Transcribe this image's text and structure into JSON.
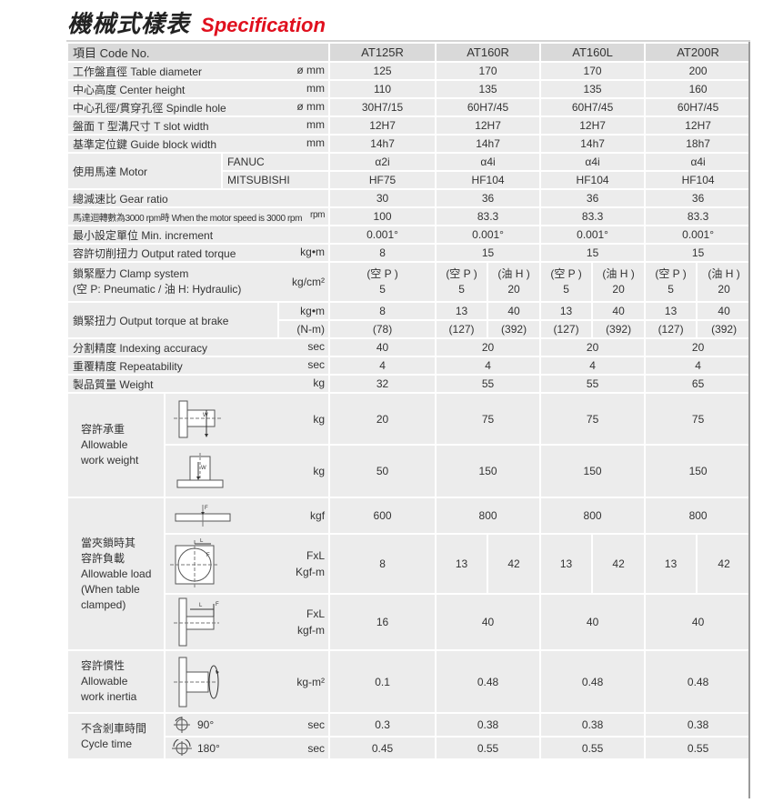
{
  "title": {
    "zh": "機械式樣表",
    "en": "Specification"
  },
  "header": {
    "label": "項目 Code No.",
    "models": [
      "AT125R",
      "AT160R",
      "AT160L",
      "AT200R"
    ]
  },
  "rows": {
    "table_diameter": {
      "label": "工作盤直徑 Table diameter",
      "unit": "ø mm",
      "values": [
        "125",
        "170",
        "170",
        "200"
      ]
    },
    "center_height": {
      "label": "中心高度 Center height",
      "unit": "mm",
      "values": [
        "110",
        "135",
        "135",
        "160"
      ]
    },
    "spindle_hole": {
      "label": "中心孔徑/貫穿孔徑 Spindle hole",
      "unit": "ø mm",
      "values": [
        "30H7/15",
        "60H7/45",
        "60H7/45",
        "60H7/45"
      ]
    },
    "t_slot": {
      "label": "盤面 T 型溝尺寸 T slot width",
      "unit": "mm",
      "values": [
        "12H7",
        "12H7",
        "12H7",
        "12H7"
      ]
    },
    "guide_block": {
      "label": "基準定位鍵 Guide block width",
      "unit": "mm",
      "values": [
        "14h7",
        "14h7",
        "14h7",
        "18h7"
      ]
    },
    "motor": {
      "label": "使用馬達 Motor",
      "fanuc": {
        "label": "FANUC",
        "values": [
          "α2i",
          "α4i",
          "α4i",
          "α4i"
        ]
      },
      "mitsubishi": {
        "label": "MITSUBISHI",
        "values": [
          "HF75",
          "HF104",
          "HF104",
          "HF104"
        ]
      }
    },
    "gear_ratio": {
      "label": "總減速比 Gear ratio",
      "values": [
        "30",
        "36",
        "36",
        "36"
      ]
    },
    "motor_speed": {
      "label": "馬達迴轉數為3000 rpm時 When the motor speed is 3000 rpm",
      "unit": "rpm",
      "values": [
        "100",
        "83.3",
        "83.3",
        "83.3"
      ]
    },
    "min_increment": {
      "label": "最小設定單位 Min. increment",
      "values": [
        "0.001°",
        "0.001°",
        "0.001°",
        "0.001°"
      ]
    },
    "output_torque": {
      "label": "容許切削扭力 Output rated torque",
      "unit": "kg•m",
      "values": [
        "8",
        "15",
        "15",
        "15"
      ]
    },
    "clamp_system": {
      "label1": "鎖緊壓力 Clamp system",
      "label2": "(空 P: Pneumatic / 油 H: Hydraulic)",
      "unit": "kg/cm²",
      "p_label": "(空 P )",
      "h_label": "(油 H )",
      "at125r": "5",
      "p_values": [
        "5",
        "5",
        "5"
      ],
      "h_values": [
        "20",
        "20",
        "20"
      ]
    },
    "brake_torque": {
      "label": "鎖緊扭力 Output torque at brake",
      "unit1": "kg•m",
      "unit2": "(N-m)",
      "at125r": [
        "8",
        "(78)"
      ],
      "p_values": [
        "13",
        "13",
        "13"
      ],
      "h_values": [
        "40",
        "40",
        "40"
      ],
      "p_nm": [
        "(127)",
        "(127)",
        "(127)"
      ],
      "h_nm": [
        "(392)",
        "(392)",
        "(392)"
      ]
    },
    "indexing": {
      "label": "分割精度 Indexing accuracy",
      "unit": "sec",
      "values": [
        "40",
        "20",
        "20",
        "20"
      ]
    },
    "repeatability": {
      "label": "重覆精度 Repeatability",
      "unit": "sec",
      "values": [
        "4",
        "4",
        "4",
        "4"
      ]
    },
    "weight": {
      "label": "製品質量 Weight",
      "unit": "kg",
      "values": [
        "32",
        "55",
        "55",
        "65"
      ]
    },
    "work_weight": {
      "label": [
        "容許承重",
        "Allowable",
        "work weight"
      ],
      "fig_letter": "W",
      "vertical": {
        "unit": "kg",
        "values": [
          "20",
          "75",
          "75",
          "75"
        ]
      },
      "horizontal": {
        "unit": "kg",
        "values": [
          "50",
          "150",
          "150",
          "150"
        ]
      }
    },
    "allowable_load": {
      "label": [
        "當夾鎖時其",
        "容許負載",
        "Allowable load",
        "(When table",
        "clamped)"
      ],
      "fig_f": "F",
      "fig_l": "L",
      "axial": {
        "unit": "kgf",
        "values": [
          "600",
          "800",
          "800",
          "800"
        ]
      },
      "radial": {
        "unit1": "FxL",
        "unit2": "Kgf-m",
        "at125r": "8",
        "p_values": [
          "13",
          "13",
          "13"
        ],
        "h_values": [
          "42",
          "42",
          "42"
        ]
      },
      "tilting": {
        "unit1": "FxL",
        "unit2": "kgf-m",
        "values": [
          "16",
          "40",
          "40",
          "40"
        ]
      }
    },
    "inertia": {
      "label": [
        "容許慣性",
        "Allowable",
        "work inertia"
      ],
      "unit": "kg-m²",
      "values": [
        "0.1",
        "0.48",
        "0.48",
        "0.48"
      ]
    },
    "cycle_time": {
      "label": [
        "不含剎車時間",
        "Cycle time"
      ],
      "deg90": {
        "angle": "90°",
        "unit": "sec",
        "values": [
          "0.3",
          "0.38",
          "0.38",
          "0.38"
        ]
      },
      "deg180": {
        "angle": "180°",
        "unit": "sec",
        "values": [
          "0.45",
          "0.55",
          "0.55",
          "0.55"
        ]
      }
    }
  }
}
